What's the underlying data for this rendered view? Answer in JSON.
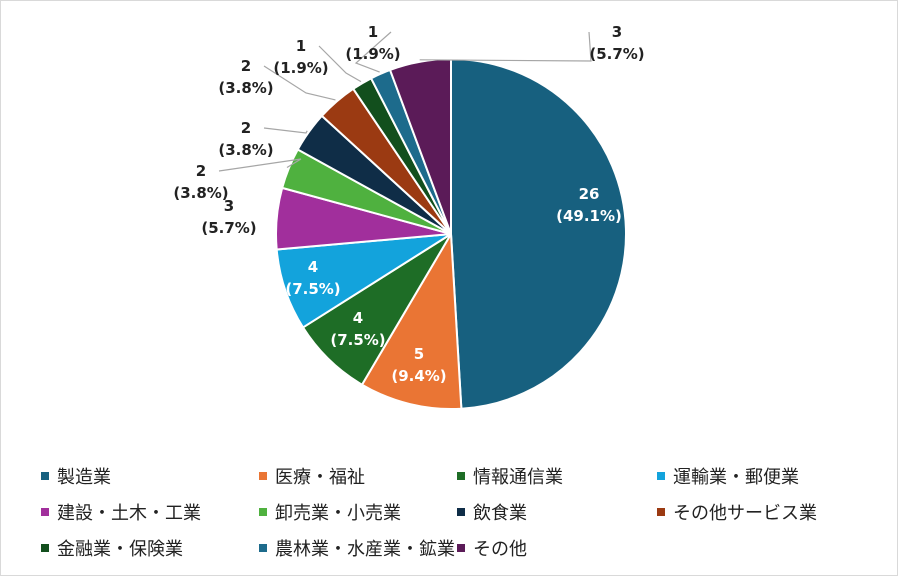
{
  "chart_data": {
    "type": "pie",
    "slices": [
      {
        "category": "製造業",
        "value": 26,
        "percent": "49.1%",
        "color": "#17607f"
      },
      {
        "category": "医療・福祉",
        "value": 5,
        "percent": "9.4%",
        "color": "#ea7534"
      },
      {
        "category": "情報通信業",
        "value": 4,
        "percent": "7.5%",
        "color": "#1e6d26"
      },
      {
        "category": "運輸業・郵便業",
        "value": 4,
        "percent": "7.5%",
        "color": "#13a3dc"
      },
      {
        "category": "建設・土木・工業",
        "value": 3,
        "percent": "5.7%",
        "color": "#a12f9c"
      },
      {
        "category": "卸売業・小売業",
        "value": 2,
        "percent": "3.8%",
        "color": "#4fb13f"
      },
      {
        "category": "飲食業",
        "value": 2,
        "percent": "3.8%",
        "color": "#0f2d47"
      },
      {
        "category": "その他サービス業",
        "value": 2,
        "percent": "3.8%",
        "color": "#9b3a12"
      },
      {
        "category": "金融業・保険業",
        "value": 1,
        "percent": "1.9%",
        "color": "#124f1d"
      },
      {
        "category": "農林業・水産業・鉱業",
        "value": 1,
        "percent": "1.9%",
        "color": "#1d6b8c"
      },
      {
        "category": "その他",
        "value": 3,
        "percent": "5.7%",
        "color": "#5b1b58"
      }
    ],
    "legend_position": "bottom"
  }
}
